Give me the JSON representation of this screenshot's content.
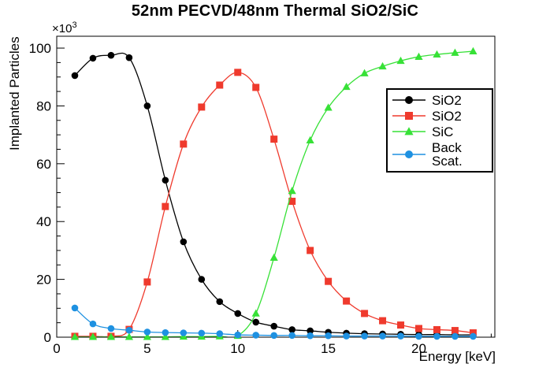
{
  "chart_data": {
    "type": "line",
    "title": "52nm PECVD/48nm Thermal SiO2/SiC",
    "xlabel": "Energy [keV]",
    "ylabel": "Implanted Particles",
    "y_multiplier_base": "×10",
    "y_multiplier_exp": "3",
    "xlim": [
      0,
      24.2
    ],
    "ylim": [
      0,
      104.1
    ],
    "x_major_ticks": [
      0,
      5,
      10,
      15,
      20
    ],
    "x_minor_step": 1,
    "y_major_ticks": [
      0,
      20,
      40,
      60,
      80,
      100
    ],
    "y_minor_step": 5,
    "grid": false,
    "legend_position": "middle-right",
    "x": [
      1,
      2,
      3,
      4,
      5,
      6,
      7,
      8,
      9,
      10,
      11,
      12,
      13,
      14,
      15,
      16,
      17,
      18,
      19,
      20,
      21,
      22,
      23
    ],
    "series": [
      {
        "name": "SiO2",
        "marker": "circle",
        "color": "#000000",
        "values": [
          90.5,
          96.5,
          97.5,
          96.7,
          80.0,
          54.3,
          33.0,
          20.0,
          12.3,
          8.2,
          5.2,
          3.8,
          2.6,
          2.2,
          1.7,
          1.4,
          1.2,
          1.1,
          1.0,
          0.9,
          0.9,
          0.8,
          0.8
        ]
      },
      {
        "name": "SiO2",
        "marker": "square",
        "color": "#ef3a2d",
        "values": [
          0.3,
          0.3,
          0.3,
          2.7,
          19.1,
          45.2,
          66.8,
          79.6,
          87.2,
          91.6,
          86.4,
          68.5,
          47.0,
          30.0,
          19.3,
          12.5,
          8.2,
          5.7,
          4.2,
          3.0,
          2.6,
          2.3,
          1.5
        ]
      },
      {
        "name": "SiC",
        "marker": "triangle",
        "color": "#37e137",
        "values": [
          0.1,
          0.1,
          0.1,
          0.1,
          0.1,
          0.1,
          0.2,
          0.2,
          0.3,
          0.5,
          8.2,
          27.5,
          50.6,
          68.1,
          79.4,
          86.6,
          91.3,
          93.7,
          95.6,
          97.0,
          97.8,
          98.4,
          98.9
        ]
      },
      {
        "name": "Back Scat.",
        "marker": "circle",
        "color": "#1e91e1",
        "values": [
          10.1,
          4.6,
          3.0,
          2.4,
          1.8,
          1.6,
          1.5,
          1.4,
          1.2,
          0.8,
          0.7,
          0.6,
          0.6,
          0.5,
          0.5,
          0.4,
          0.4,
          0.4,
          0.4,
          0.3,
          0.3,
          0.3,
          0.3
        ]
      }
    ],
    "legend": {
      "entries": [
        {
          "label": "SiO2",
          "series_index": 0
        },
        {
          "label": "SiO2",
          "series_index": 1
        },
        {
          "label": "SiC",
          "series_index": 2
        },
        {
          "label": "Back Scat.",
          "series_index": 3
        }
      ]
    }
  }
}
